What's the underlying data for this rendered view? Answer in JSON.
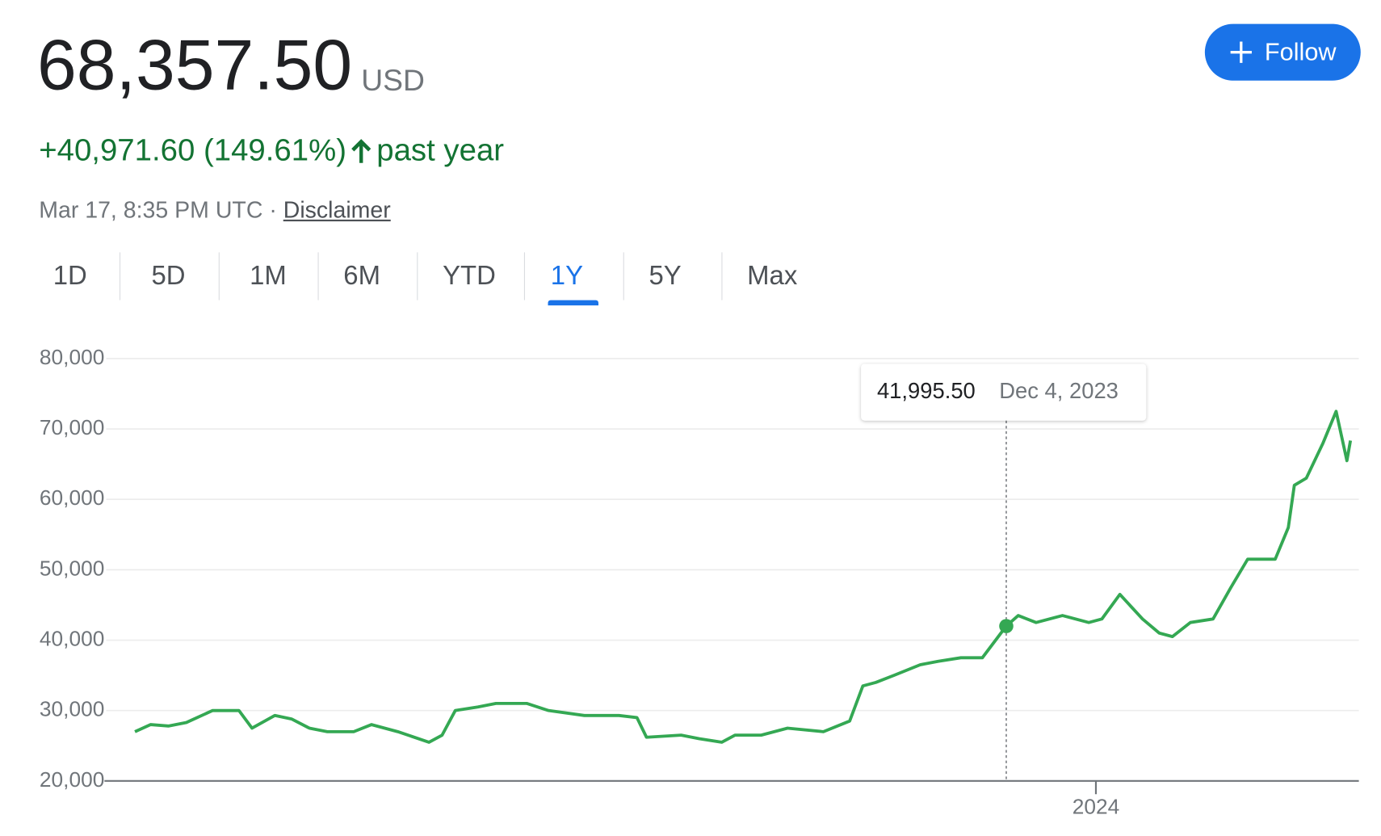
{
  "header": {
    "price": "68,357.50",
    "currency": "USD",
    "change": "+40,971.60 (149.61%)",
    "period": "past year",
    "timestamp": "Mar 17, 8:35 PM UTC",
    "disclaimer": "Disclaimer",
    "follow": "Follow"
  },
  "tabs": [
    "1D",
    "5D",
    "1M",
    "6M",
    "YTD",
    "1Y",
    "5Y",
    "Max"
  ],
  "selected_tab": "1Y",
  "chart_data": {
    "type": "line",
    "color": "#34a853",
    "x": [
      2023.196,
      2023.209,
      2023.224,
      2023.239,
      2023.261,
      2023.283,
      2023.294,
      2023.313,
      2023.327,
      2023.342,
      2023.357,
      2023.379,
      2023.394,
      2023.416,
      2023.442,
      2023.453,
      2023.464,
      2023.483,
      2023.498,
      2023.524,
      2023.542,
      2023.572,
      2023.601,
      2023.616,
      2023.624,
      2023.653,
      2023.668,
      2023.687,
      2023.698,
      2023.72,
      2023.742,
      2023.772,
      2023.794,
      2023.805,
      2023.816,
      2023.831,
      2023.853,
      2023.868,
      2023.887,
      2023.905,
      2023.925,
      2023.935,
      2023.95,
      2023.972,
      2023.994,
      2024.005,
      2024.02,
      2024.039,
      2024.053,
      2024.064,
      2024.079,
      2024.098,
      2024.113,
      2024.127,
      2024.15,
      2024.161,
      2024.166,
      2024.176,
      2024.19,
      2024.201,
      2024.21,
      2024.213
    ],
    "values": [
      27000,
      28000,
      27800,
      28300,
      30000,
      30000,
      27500,
      29300,
      28800,
      27500,
      27000,
      27000,
      28000,
      27000,
      25500,
      26500,
      30000,
      30500,
      31000,
      31000,
      30000,
      29300,
      29300,
      29000,
      26200,
      26500,
      26000,
      25500,
      26500,
      26500,
      27500,
      27000,
      28500,
      33500,
      34000,
      35000,
      36500,
      37000,
      37500,
      37500,
      41995.5,
      43500,
      42500,
      43500,
      42500,
      43000,
      46500,
      43000,
      41000,
      40500,
      42500,
      43000,
      47500,
      51500,
      51500,
      56000,
      62000,
      63000,
      68000,
      72500,
      65500,
      68357.5
    ],
    "xlim": [
      2023.172,
      2024.22
    ],
    "xticks": [
      {
        "value": 2024,
        "label": "2024"
      }
    ],
    "ylim": [
      20000,
      80000
    ],
    "yticks": [
      {
        "value": 20000,
        "label": "20,000"
      },
      {
        "value": 30000,
        "label": "30,000"
      },
      {
        "value": 40000,
        "label": "40,000"
      },
      {
        "value": 50000,
        "label": "50,000"
      },
      {
        "value": 60000,
        "label": "60,000"
      },
      {
        "value": 70000,
        "label": "70,000"
      },
      {
        "value": 80000,
        "label": "80,000"
      }
    ],
    "grid": true,
    "tooltip": {
      "x": 2023.925,
      "value": 41995.5,
      "label": "41,995.50",
      "date": "Dec 4, 2023"
    }
  }
}
